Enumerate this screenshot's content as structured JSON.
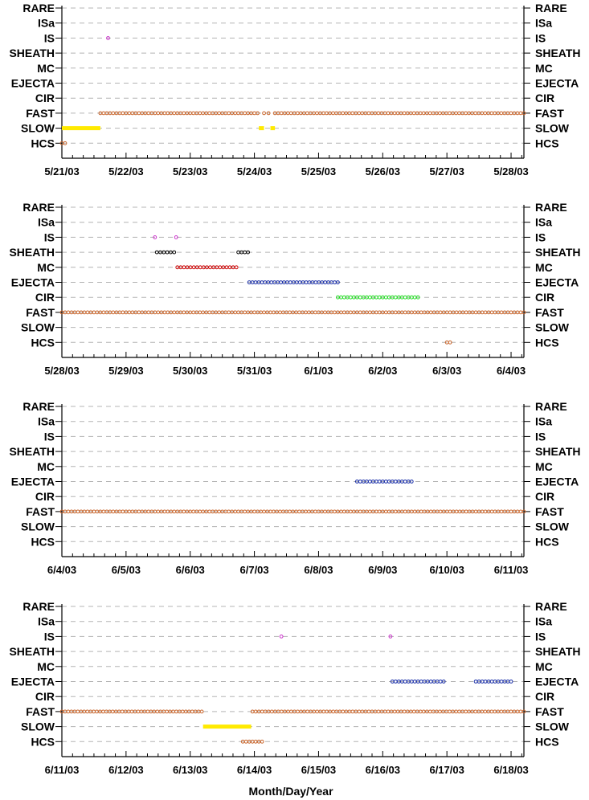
{
  "chart_data": {
    "type": "scatter",
    "xlabel": "Month/Day/Year",
    "categories": [
      "RARE",
      "ISa",
      "IS",
      "SHEATH",
      "MC",
      "EJECTA",
      "CIR",
      "FAST",
      "SLOW",
      "HCS"
    ],
    "colors": {
      "FAST": "#c8642a",
      "SLOW": "#ffea00",
      "HCS": "#c8642a",
      "IS": "#cc33cc",
      "SHEATH": "#000000",
      "MC": "#cc0000",
      "EJECTA": "#1a2fa8",
      "CIR": "#22dd22"
    },
    "panels": [
      {
        "x_ticks": [
          "5/21/03",
          "5/22/03",
          "5/23/03",
          "5/24/03",
          "5/25/03",
          "5/26/03",
          "5/27/03",
          "5/28/03"
        ],
        "xlim_days": [
          0,
          7.2
        ],
        "markers": [
          {
            "category": "HCS",
            "start": 0.0,
            "end": 0.05,
            "style": "circle"
          },
          {
            "category": "SLOW",
            "start": 0.0,
            "end": 0.6,
            "style": "bar"
          },
          {
            "category": "FAST",
            "start": 0.6,
            "end": 3.05,
            "style": "circle"
          },
          {
            "category": "IS",
            "start": 0.72,
            "end": 0.72,
            "style": "circle"
          },
          {
            "category": "SLOW",
            "start": 3.07,
            "end": 3.15,
            "style": "bar"
          },
          {
            "category": "FAST",
            "start": 3.15,
            "end": 3.22,
            "style": "circle"
          },
          {
            "category": "SLOW",
            "start": 3.25,
            "end": 3.32,
            "style": "bar"
          },
          {
            "category": "FAST",
            "start": 3.32,
            "end": 7.2,
            "style": "circle"
          }
        ]
      },
      {
        "x_ticks": [
          "5/28/03",
          "5/29/03",
          "5/30/03",
          "5/31/03",
          "6/1/03",
          "6/2/03",
          "6/3/03",
          "6/4/03"
        ],
        "xlim_days": [
          0,
          7.2
        ],
        "markers": [
          {
            "category": "FAST",
            "start": 0.0,
            "end": 7.2,
            "style": "circle"
          },
          {
            "category": "IS",
            "start": 1.45,
            "end": 1.45,
            "style": "circle"
          },
          {
            "category": "IS",
            "start": 1.78,
            "end": 1.78,
            "style": "circle"
          },
          {
            "category": "SHEATH",
            "start": 1.48,
            "end": 1.75,
            "style": "circle"
          },
          {
            "category": "SHEATH",
            "start": 2.75,
            "end": 2.9,
            "style": "circle"
          },
          {
            "category": "MC",
            "start": 1.8,
            "end": 2.72,
            "style": "circle"
          },
          {
            "category": "EJECTA",
            "start": 2.92,
            "end": 4.3,
            "style": "circle"
          },
          {
            "category": "CIR",
            "start": 4.3,
            "end": 5.55,
            "style": "circle"
          },
          {
            "category": "HCS",
            "start": 6.0,
            "end": 6.05,
            "style": "circle"
          }
        ]
      },
      {
        "x_ticks": [
          "6/4/03",
          "6/5/03",
          "6/6/03",
          "6/7/03",
          "6/8/03",
          "6/9/03",
          "6/10/03",
          "6/11/03"
        ],
        "xlim_days": [
          0,
          7.2
        ],
        "markers": [
          {
            "category": "FAST",
            "start": 0.0,
            "end": 7.2,
            "style": "circle"
          },
          {
            "category": "EJECTA",
            "start": 4.6,
            "end": 5.45,
            "style": "circle"
          }
        ]
      },
      {
        "x_ticks": [
          "6/11/03",
          "6/12/03",
          "6/13/03",
          "6/14/03",
          "6/15/03",
          "6/16/03",
          "6/17/03",
          "6/18/03"
        ],
        "xlim_days": [
          0,
          7.2
        ],
        "markers": [
          {
            "category": "FAST",
            "start": 0.0,
            "end": 2.18,
            "style": "circle"
          },
          {
            "category": "SLOW",
            "start": 2.2,
            "end": 2.95,
            "style": "bar"
          },
          {
            "category": "HCS",
            "start": 2.82,
            "end": 3.12,
            "style": "circle"
          },
          {
            "category": "FAST",
            "start": 2.97,
            "end": 7.2,
            "style": "circle"
          },
          {
            "category": "IS",
            "start": 3.42,
            "end": 3.42,
            "style": "circle"
          },
          {
            "category": "IS",
            "start": 5.12,
            "end": 5.12,
            "style": "circle"
          },
          {
            "category": "EJECTA",
            "start": 5.15,
            "end": 5.95,
            "style": "circle"
          },
          {
            "category": "EJECTA",
            "start": 6.45,
            "end": 7.0,
            "style": "circle"
          }
        ]
      }
    ]
  }
}
